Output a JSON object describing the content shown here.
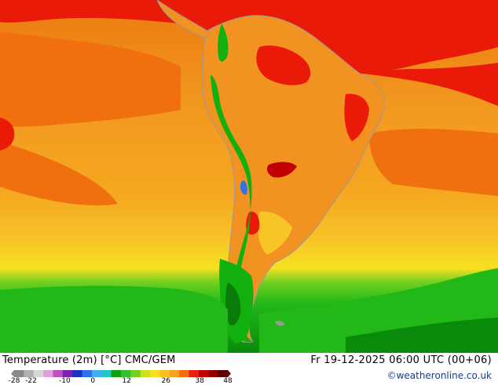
{
  "map": {
    "title": "Temperature (2m) [°C] CMC/GEM",
    "run_time": "Fr 19-12-2025 06:00 UTC (00+06)",
    "credit": "©weatheronline.co.uk",
    "legend": {
      "ticks": [
        "-28",
        "-22",
        "-10",
        "0",
        "12",
        "26",
        "38",
        "48"
      ],
      "colors": [
        "#8a8a8a",
        "#b0b0b0",
        "#d7d7d7",
        "#e0a0e0",
        "#c050c0",
        "#8020b0",
        "#2030c0",
        "#3070e8",
        "#40b0f0",
        "#20c8c8",
        "#10a010",
        "#30c030",
        "#70d020",
        "#d0e020",
        "#f8e020",
        "#f8c020",
        "#f8a020",
        "#f07010",
        "#e82010",
        "#c00000",
        "#900000",
        "#600000"
      ],
      "tick_values": [
        -28,
        -22,
        -10,
        0,
        12,
        26,
        38,
        48
      ],
      "range": [
        -28,
        48
      ]
    },
    "colors": {
      "ocean_warm": "#f5a018",
      "ocean_hot": "#ec7a10",
      "ocean_mild": "#f8c428",
      "land_hot": "#ea1a08",
      "land_warm": "#f29220",
      "cool_green": "#12b00e",
      "dark_green": "#0a7a0a",
      "coast": "#9a9a9a"
    }
  }
}
